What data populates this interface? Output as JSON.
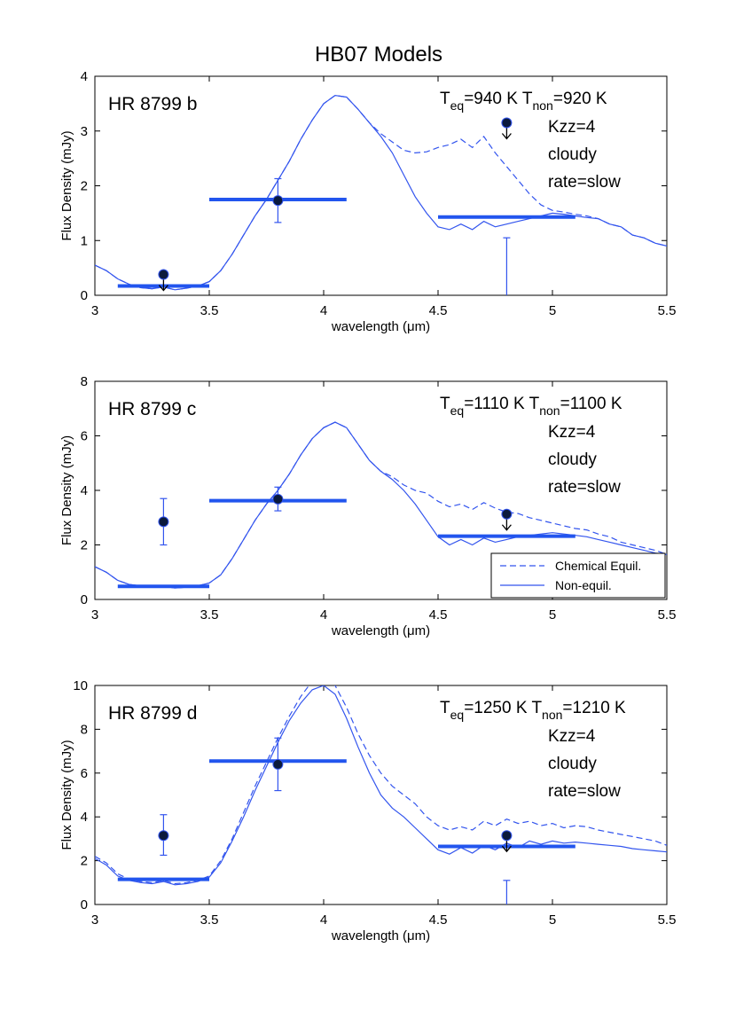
{
  "figure": {
    "title": "HB07 Models"
  },
  "colors": {
    "model": "#3355EE",
    "band": "#2255EE",
    "point_face": "#0B1A3C",
    "axis": "#000000",
    "legend_border": "#000000"
  },
  "legend": {
    "entries": [
      "Chemical Equil.",
      "Non-equil."
    ]
  },
  "chart_data": [
    {
      "type": "line",
      "panel_label": "HR 8799 b",
      "xlabel": "wavelength (μm)",
      "ylabel": "Flux Density (mJy)",
      "xlim": [
        3,
        5.5
      ],
      "ylim": [
        0,
        4
      ],
      "xticks": [
        "3",
        "3.5",
        "4",
        "4.5",
        "5",
        "5.5"
      ],
      "yticks": [
        "0",
        "1",
        "2",
        "3",
        "4"
      ],
      "annotations": {
        "teq": "940 K",
        "tnon": "920 K",
        "kzz": "Kzz=4",
        "cloud": "cloudy",
        "rate": "rate=slow"
      },
      "series": [
        {
          "name": "Chemical Equil.",
          "style": "dashed",
          "x": [
            3.0,
            3.05,
            3.1,
            3.15,
            3.2,
            3.25,
            3.3,
            3.35,
            3.4,
            3.45,
            3.5,
            3.55,
            3.6,
            3.65,
            3.7,
            3.75,
            3.8,
            3.85,
            3.9,
            3.95,
            4.0,
            4.05,
            4.1,
            4.15,
            4.2,
            4.25,
            4.3,
            4.35,
            4.4,
            4.45,
            4.5,
            4.55,
            4.6,
            4.65,
            4.7,
            4.75,
            4.8,
            4.85,
            4.9,
            4.95,
            5.0,
            5.05,
            5.1,
            5.15,
            5.2,
            5.25,
            5.3,
            5.35,
            5.4,
            5.45,
            5.5
          ],
          "y": [
            0.55,
            0.45,
            0.3,
            0.2,
            0.14,
            0.12,
            0.15,
            0.1,
            0.13,
            0.17,
            0.25,
            0.45,
            0.75,
            1.1,
            1.45,
            1.75,
            2.1,
            2.45,
            2.85,
            3.2,
            3.5,
            3.65,
            3.62,
            3.4,
            3.15,
            2.95,
            2.8,
            2.65,
            2.6,
            2.62,
            2.7,
            2.75,
            2.85,
            2.7,
            2.9,
            2.6,
            2.35,
            2.1,
            1.85,
            1.65,
            1.55,
            1.52,
            1.48,
            1.45,
            1.4,
            1.3,
            1.25,
            1.1,
            1.05,
            0.95,
            0.9
          ]
        },
        {
          "name": "Non-equil.",
          "style": "solid",
          "x": [
            3.0,
            3.05,
            3.1,
            3.15,
            3.2,
            3.25,
            3.3,
            3.35,
            3.4,
            3.45,
            3.5,
            3.55,
            3.6,
            3.65,
            3.7,
            3.75,
            3.8,
            3.85,
            3.9,
            3.95,
            4.0,
            4.05,
            4.1,
            4.15,
            4.2,
            4.25,
            4.3,
            4.35,
            4.4,
            4.45,
            4.5,
            4.55,
            4.6,
            4.65,
            4.7,
            4.75,
            4.8,
            4.85,
            4.9,
            4.95,
            5.0,
            5.05,
            5.1,
            5.15,
            5.2,
            5.25,
            5.3,
            5.35,
            5.4,
            5.45,
            5.5
          ],
          "y": [
            0.55,
            0.45,
            0.3,
            0.2,
            0.14,
            0.12,
            0.15,
            0.1,
            0.13,
            0.17,
            0.25,
            0.45,
            0.75,
            1.1,
            1.45,
            1.75,
            2.1,
            2.45,
            2.85,
            3.2,
            3.5,
            3.65,
            3.62,
            3.4,
            3.15,
            2.9,
            2.6,
            2.2,
            1.8,
            1.5,
            1.25,
            1.2,
            1.3,
            1.2,
            1.35,
            1.25,
            1.3,
            1.35,
            1.4,
            1.45,
            1.5,
            1.48,
            1.45,
            1.42,
            1.4,
            1.3,
            1.25,
            1.1,
            1.05,
            0.95,
            0.9
          ]
        }
      ],
      "bands": [
        {
          "x0": 3.1,
          "x1": 3.5,
          "y": 0.17
        },
        {
          "x0": 3.5,
          "x1": 4.1,
          "y": 1.75
        },
        {
          "x0": 4.5,
          "x1": 5.1,
          "y": 1.43
        }
      ],
      "points": [
        {
          "x": 3.3,
          "y": 0.38,
          "upper_limit": true
        },
        {
          "x": 3.8,
          "y": 1.73,
          "err_low": 1.33,
          "err_high": 2.13
        },
        {
          "x": 4.8,
          "y": 3.15,
          "upper_limit": true
        }
      ],
      "extra_errorbars": [
        {
          "x": 4.8,
          "y_low": 0,
          "y_high": 1.05
        }
      ]
    },
    {
      "type": "line",
      "panel_label": "HR 8799 c",
      "xlabel": "wavelength (μm)",
      "ylabel": "Flux Density (mJy)",
      "xlim": [
        3,
        5.5
      ],
      "ylim": [
        0,
        8
      ],
      "xticks": [
        "3",
        "3.5",
        "4",
        "4.5",
        "5",
        "5.5"
      ],
      "yticks": [
        "0",
        "2",
        "4",
        "6",
        "8"
      ],
      "annotations": {
        "teq": "1110 K",
        "tnon": "1100 K",
        "kzz": "Kzz=4",
        "cloud": "cloudy",
        "rate": "rate=slow"
      },
      "series": [
        {
          "name": "Chemical Equil.",
          "style": "dashed",
          "x": [
            3.0,
            3.05,
            3.1,
            3.15,
            3.2,
            3.25,
            3.3,
            3.35,
            3.4,
            3.45,
            3.5,
            3.55,
            3.6,
            3.65,
            3.7,
            3.75,
            3.8,
            3.85,
            3.9,
            3.95,
            4.0,
            4.05,
            4.1,
            4.15,
            4.2,
            4.25,
            4.3,
            4.35,
            4.4,
            4.45,
            4.5,
            4.55,
            4.6,
            4.65,
            4.7,
            4.75,
            4.8,
            4.85,
            4.9,
            4.95,
            5.0,
            5.05,
            5.1,
            5.15,
            5.2,
            5.25,
            5.3,
            5.35,
            5.4,
            5.45,
            5.5
          ],
          "y": [
            1.2,
            1.0,
            0.7,
            0.55,
            0.5,
            0.45,
            0.48,
            0.42,
            0.45,
            0.5,
            0.6,
            0.9,
            1.5,
            2.2,
            2.9,
            3.5,
            4.0,
            4.6,
            5.3,
            5.9,
            6.3,
            6.5,
            6.3,
            5.7,
            5.1,
            4.7,
            4.5,
            4.2,
            4.0,
            3.9,
            3.6,
            3.4,
            3.5,
            3.3,
            3.55,
            3.35,
            3.2,
            3.15,
            3.0,
            2.9,
            2.8,
            2.7,
            2.6,
            2.55,
            2.4,
            2.3,
            2.1,
            2.0,
            1.9,
            1.8,
            1.65
          ]
        },
        {
          "name": "Non-equil.",
          "style": "solid",
          "x": [
            3.0,
            3.05,
            3.1,
            3.15,
            3.2,
            3.25,
            3.3,
            3.35,
            3.4,
            3.45,
            3.5,
            3.55,
            3.6,
            3.65,
            3.7,
            3.75,
            3.8,
            3.85,
            3.9,
            3.95,
            4.0,
            4.05,
            4.1,
            4.15,
            4.2,
            4.25,
            4.3,
            4.35,
            4.4,
            4.45,
            4.5,
            4.55,
            4.6,
            4.65,
            4.7,
            4.75,
            4.8,
            4.85,
            4.9,
            4.95,
            5.0,
            5.05,
            5.1,
            5.15,
            5.2,
            5.25,
            5.3,
            5.35,
            5.4,
            5.45,
            5.5
          ],
          "y": [
            1.2,
            1.0,
            0.7,
            0.55,
            0.5,
            0.45,
            0.48,
            0.42,
            0.45,
            0.5,
            0.6,
            0.9,
            1.5,
            2.2,
            2.9,
            3.5,
            4.0,
            4.6,
            5.3,
            5.9,
            6.3,
            6.5,
            6.3,
            5.7,
            5.1,
            4.7,
            4.4,
            4.0,
            3.5,
            2.9,
            2.3,
            2.0,
            2.2,
            2.0,
            2.25,
            2.1,
            2.2,
            2.3,
            2.35,
            2.4,
            2.45,
            2.4,
            2.35,
            2.3,
            2.2,
            2.1,
            2.0,
            1.9,
            1.8,
            1.7,
            1.65
          ]
        }
      ],
      "bands": [
        {
          "x0": 3.1,
          "x1": 3.5,
          "y": 0.48
        },
        {
          "x0": 3.5,
          "x1": 4.1,
          "y": 3.62
        },
        {
          "x0": 4.5,
          "x1": 5.1,
          "y": 2.32
        }
      ],
      "points": [
        {
          "x": 3.3,
          "y": 2.85,
          "err_low": 2.0,
          "err_high": 3.7
        },
        {
          "x": 3.8,
          "y": 3.68,
          "err_low": 3.25,
          "err_high": 4.12
        },
        {
          "x": 4.8,
          "y": 3.13,
          "upper_limit": true
        }
      ],
      "extra_errorbars": []
    },
    {
      "type": "line",
      "panel_label": "HR 8799 d",
      "xlabel": "wavelength (μm)",
      "ylabel": "Flux Density (mJy)",
      "xlim": [
        3,
        5.5
      ],
      "ylim": [
        0,
        10
      ],
      "xticks": [
        "3",
        "3.5",
        "4",
        "4.5",
        "5",
        "5.5"
      ],
      "yticks": [
        "0",
        "2",
        "4",
        "6",
        "8",
        "10"
      ],
      "annotations": {
        "teq": "1250 K",
        "tnon": "1210 K",
        "kzz": "Kzz=4",
        "cloud": "cloudy",
        "rate": "rate=slow"
      },
      "series": [
        {
          "name": "Chemical Equil.",
          "style": "dashed",
          "x": [
            3.0,
            3.05,
            3.1,
            3.15,
            3.2,
            3.25,
            3.3,
            3.35,
            3.4,
            3.45,
            3.5,
            3.55,
            3.6,
            3.65,
            3.7,
            3.75,
            3.8,
            3.85,
            3.9,
            3.95,
            4.0,
            4.05,
            4.1,
            4.15,
            4.2,
            4.25,
            4.3,
            4.35,
            4.4,
            4.45,
            4.5,
            4.55,
            4.6,
            4.65,
            4.7,
            4.75,
            4.8,
            4.85,
            4.9,
            4.95,
            5.0,
            5.05,
            5.1,
            5.15,
            5.2,
            5.25,
            5.3,
            5.35,
            5.4,
            5.45,
            5.5
          ],
          "y": [
            2.2,
            1.9,
            1.4,
            1.15,
            1.05,
            1.0,
            1.1,
            0.95,
            1.0,
            1.1,
            1.3,
            2.0,
            3.0,
            4.2,
            5.4,
            6.5,
            7.6,
            8.6,
            9.5,
            10.2,
            10.5,
            10.0,
            9.0,
            7.8,
            6.8,
            6.0,
            5.4,
            5.0,
            4.6,
            4.0,
            3.6,
            3.4,
            3.55,
            3.4,
            3.8,
            3.6,
            3.9,
            3.7,
            3.8,
            3.6,
            3.7,
            3.5,
            3.6,
            3.55,
            3.4,
            3.3,
            3.2,
            3.1,
            3.0,
            2.9,
            2.7
          ]
        },
        {
          "name": "Non-equil.",
          "style": "solid",
          "x": [
            3.0,
            3.05,
            3.1,
            3.15,
            3.2,
            3.25,
            3.3,
            3.35,
            3.4,
            3.45,
            3.5,
            3.55,
            3.6,
            3.65,
            3.7,
            3.75,
            3.8,
            3.85,
            3.9,
            3.95,
            4.0,
            4.05,
            4.1,
            4.15,
            4.2,
            4.25,
            4.3,
            4.35,
            4.4,
            4.45,
            4.5,
            4.55,
            4.6,
            4.65,
            4.7,
            4.75,
            4.8,
            4.85,
            4.9,
            4.95,
            5.0,
            5.05,
            5.1,
            5.15,
            5.2,
            5.25,
            5.3,
            5.35,
            5.4,
            5.45,
            5.5
          ],
          "y": [
            2.1,
            1.8,
            1.3,
            1.1,
            1.0,
            0.95,
            1.05,
            0.9,
            0.95,
            1.05,
            1.25,
            1.9,
            2.9,
            4.0,
            5.2,
            6.3,
            7.4,
            8.4,
            9.2,
            9.8,
            10.0,
            9.6,
            8.5,
            7.2,
            6.0,
            5.0,
            4.4,
            4.0,
            3.5,
            3.0,
            2.5,
            2.3,
            2.6,
            2.35,
            2.7,
            2.5,
            2.8,
            2.6,
            2.9,
            2.75,
            2.9,
            2.8,
            2.85,
            2.8,
            2.75,
            2.7,
            2.65,
            2.55,
            2.5,
            2.45,
            2.4
          ]
        }
      ],
      "bands": [
        {
          "x0": 3.1,
          "x1": 3.5,
          "y": 1.15
        },
        {
          "x0": 3.5,
          "x1": 4.1,
          "y": 6.55
        },
        {
          "x0": 4.5,
          "x1": 5.1,
          "y": 2.65
        }
      ],
      "points": [
        {
          "x": 3.3,
          "y": 3.15,
          "err_low": 2.25,
          "err_high": 4.1
        },
        {
          "x": 3.8,
          "y": 6.4,
          "err_low": 5.2,
          "err_high": 7.6
        },
        {
          "x": 4.8,
          "y": 3.15,
          "upper_limit": true
        }
      ],
      "extra_errorbars": [
        {
          "x": 4.8,
          "y_low": 0,
          "y_high": 1.1
        }
      ]
    }
  ]
}
